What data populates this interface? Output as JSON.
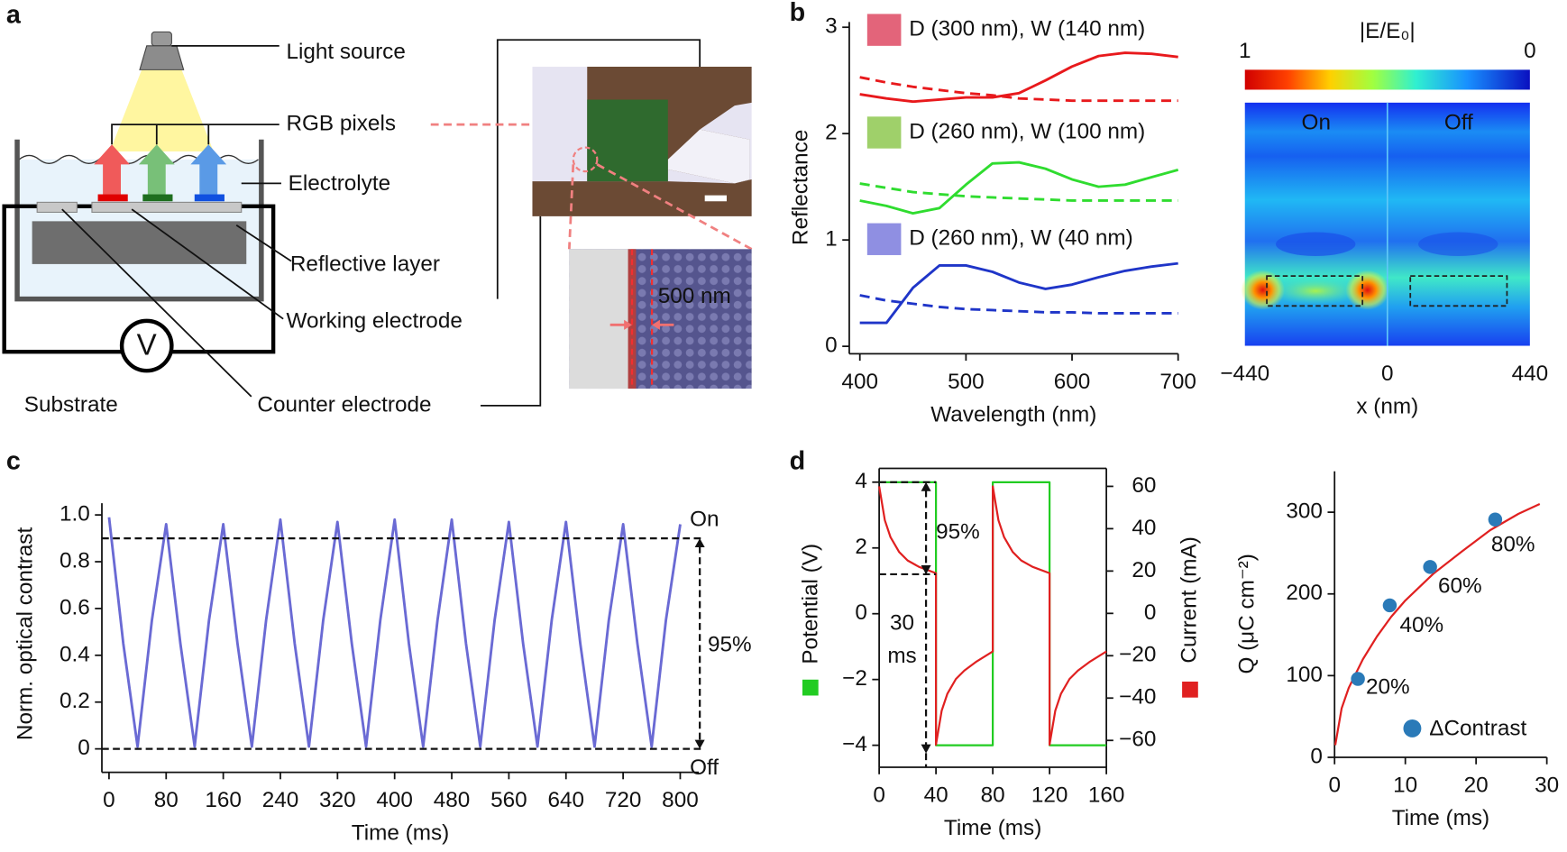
{
  "panel_labels": [
    "a",
    "b",
    "c",
    "d"
  ],
  "diagram": {
    "labels": [
      "Light source",
      "RGB pixels",
      "Electrolyte",
      "Reflective layer",
      "Working electrode",
      "Substrate",
      "Counter electrode"
    ],
    "voltmeter": "V",
    "scale_bar": "500 nm"
  },
  "chart_data": [
    {
      "type": "line",
      "xlabel": "Wavelength (nm)",
      "ylabel": "Reflectance",
      "x": [
        400,
        425,
        450,
        475,
        500,
        525,
        550,
        575,
        600,
        625,
        650,
        675,
        700
      ],
      "xlim": [
        390,
        700
      ],
      "xticks": [
        400,
        500,
        600,
        700
      ],
      "ylim": [
        -0.07,
        3.05
      ],
      "yticks": [
        0,
        1,
        2,
        3
      ],
      "series": [
        {
          "name": "D (300 nm), W (140 nm)",
          "color": "#e8191c",
          "swatch_color": "#e3647a",
          "dashed": false,
          "values": [
            2.37,
            2.33,
            2.3,
            2.32,
            2.34,
            2.34,
            2.38,
            2.5,
            2.63,
            2.73,
            2.76,
            2.75,
            2.72
          ]
        },
        {
          "color": "#e8191c",
          "dashed": true,
          "values": [
            2.53,
            2.48,
            2.44,
            2.41,
            2.38,
            2.36,
            2.33,
            2.32,
            2.31,
            2.31,
            2.31,
            2.31,
            2.31
          ]
        },
        {
          "name": "D (260 nm), W (100 nm)",
          "color": "#2fdc2f",
          "swatch_color": "#9fd06a",
          "dashed": false,
          "values": [
            1.37,
            1.32,
            1.25,
            1.3,
            1.52,
            1.72,
            1.73,
            1.67,
            1.57,
            1.5,
            1.52,
            1.59,
            1.66
          ]
        },
        {
          "color": "#2fdc2f",
          "dashed": true,
          "values": [
            1.53,
            1.49,
            1.45,
            1.43,
            1.41,
            1.4,
            1.39,
            1.38,
            1.37,
            1.37,
            1.37,
            1.37,
            1.37
          ]
        },
        {
          "name": "D (260 nm), W (40 nm)",
          "color": "#1f35c8",
          "swatch_color": "#8f8fe2",
          "dashed": false,
          "values": [
            0.22,
            0.22,
            0.55,
            0.76,
            0.76,
            0.7,
            0.6,
            0.54,
            0.58,
            0.65,
            0.71,
            0.75,
            0.78
          ]
        },
        {
          "color": "#1f35c8",
          "dashed": true,
          "values": [
            0.48,
            0.43,
            0.4,
            0.37,
            0.35,
            0.34,
            0.33,
            0.32,
            0.32,
            0.31,
            0.31,
            0.31,
            0.31
          ]
        }
      ]
    },
    {
      "type": "heatmap",
      "colorbar_label": "|E/E₀|",
      "clim": [
        1,
        0
      ],
      "colorbar_ticks": [
        1,
        0
      ],
      "column_labels": [
        "On",
        "Off"
      ],
      "xlabel": "x (nm)",
      "xlim": [
        -440,
        440
      ],
      "xticks": [
        {
          "value": -440,
          "label": "−440"
        },
        0,
        440
      ]
    },
    {
      "type": "line",
      "xlabel": "Time (ms)",
      "ylabel": "Norm. optical contrast",
      "xlim": [
        -10,
        826
      ],
      "xticks": [
        0,
        80,
        160,
        240,
        320,
        400,
        480,
        560,
        640,
        720,
        800
      ],
      "ylim": [
        -0.1,
        1.05
      ],
      "yticks": [
        0,
        0.2,
        0.4,
        0.6,
        0.8,
        {
          "value": 1,
          "label": "1.0"
        }
      ],
      "hlines": [
        0.9,
        0
      ],
      "annotations": [
        "On",
        "Off",
        "95%"
      ],
      "x": [
        0,
        20,
        40,
        60,
        80,
        100,
        120,
        140,
        160,
        180,
        200,
        220,
        240,
        260,
        280,
        300,
        320,
        340,
        360,
        380,
        400,
        420,
        440,
        460,
        480,
        500,
        520,
        540,
        560,
        580,
        600,
        620,
        640,
        660,
        680,
        700,
        720,
        740,
        760,
        780,
        800
      ],
      "series": [
        {
          "color": "#6a6ad4",
          "values": [
            0.99,
            0.45,
            0.01,
            0.55,
            0.96,
            0.45,
            0.01,
            0.55,
            0.96,
            0.45,
            0.01,
            0.55,
            0.98,
            0.45,
            0.01,
            0.55,
            0.97,
            0.45,
            0.01,
            0.55,
            0.98,
            0.45,
            0.01,
            0.55,
            0.98,
            0.45,
            0.01,
            0.55,
            0.97,
            0.45,
            0.01,
            0.55,
            0.97,
            0.45,
            0.01,
            0.55,
            0.96,
            0.45,
            0.01,
            0.55,
            0.96
          ]
        }
      ]
    },
    {
      "type": "dual_line",
      "xlabel": "Time (ms)",
      "ylabel": "Potential (V)",
      "y2label": "Current (mA)",
      "xlim": [
        0,
        160
      ],
      "xticks": [
        0,
        40,
        80,
        120,
        160
      ],
      "ylim": [
        -4.67,
        4.42
      ],
      "yticks": [
        {
          "value": -4,
          "label": "−4"
        },
        {
          "value": -2,
          "label": "−2"
        },
        0,
        2,
        4
      ],
      "y2lim": [
        -72.7,
        68.5
      ],
      "y2ticks": [
        {
          "value": -60,
          "label": "−60"
        },
        {
          "value": -40,
          "label": "−40"
        },
        {
          "value": -20,
          "label": "−20"
        },
        0,
        20,
        40,
        60
      ],
      "vlines": [
        33
      ],
      "hlines": [
        4,
        1.2
      ],
      "annotations": [
        "95%",
        "30",
        "ms"
      ],
      "series": [
        {
          "color": "#22cc22",
          "axis": "y",
          "x": [
            0,
            40,
            40,
            80,
            80,
            120,
            120,
            160
          ],
          "values": [
            4,
            4,
            -4,
            -4,
            4,
            4,
            -4,
            -4
          ]
        },
        {
          "color": "#e02020",
          "axis": "y2",
          "x": [
            0,
            4,
            8,
            14,
            20,
            28,
            40,
            40,
            44,
            48,
            54,
            60,
            68,
            80,
            80,
            84,
            88,
            94,
            100,
            108,
            120,
            120,
            124,
            128,
            134,
            140,
            148,
            160
          ],
          "values": [
            60,
            44,
            36,
            29,
            25,
            22,
            19,
            -62,
            -46,
            -38,
            -31,
            -27,
            -23,
            -18,
            60,
            44,
            36,
            29,
            25,
            22,
            19,
            -62,
            -46,
            -38,
            -31,
            -27,
            -23,
            -18
          ]
        }
      ]
    },
    {
      "type": "scatter",
      "xlabel": "Time (ms)",
      "ylabel": "Q (μC cm⁻²)",
      "xlim": [
        0,
        30
      ],
      "xticks": [
        0,
        10,
        20,
        30
      ],
      "ylim": [
        0,
        350
      ],
      "yticks": [
        0,
        100,
        200,
        300
      ],
      "series": [
        {
          "name": "ΔContrast",
          "color": "#2a7ab8",
          "x": [
            3.3,
            7.8,
            13.5,
            22.7
          ],
          "values": [
            96,
            186,
            233,
            291
          ],
          "point_labels": [
            "20%",
            "40%",
            "60%",
            "80%"
          ]
        },
        {
          "color": "#e02020",
          "x": [
            0.1,
            1,
            2,
            4,
            6,
            8,
            10,
            14,
            18,
            22,
            26,
            29
          ],
          "values": [
            15,
            60,
            85,
            120,
            148,
            172,
            192,
            225,
            252,
            278,
            298,
            310
          ]
        }
      ]
    }
  ]
}
